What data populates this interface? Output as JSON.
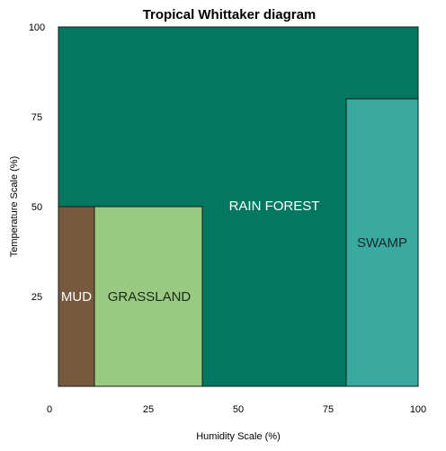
{
  "chart_data": {
    "type": "area",
    "title": "Tropical Whittaker diagram",
    "xlabel": "Humidity Scale (%)",
    "ylabel": "Temperature Scale (%)",
    "xlim": [
      0,
      100
    ],
    "ylim": [
      0,
      100
    ],
    "xticks": [
      "0",
      "25",
      "50",
      "75",
      "100"
    ],
    "yticks": [
      "25",
      "50",
      "75",
      "100"
    ],
    "grid": false,
    "legend": "none",
    "regions": [
      {
        "name": "RAIN FOREST",
        "color": "#047760",
        "label_color": "#ffffff",
        "polygon": [
          [
            0,
            100
          ],
          [
            100,
            100
          ],
          [
            100,
            80
          ],
          [
            80,
            80
          ],
          [
            80,
            0
          ],
          [
            40,
            0
          ],
          [
            40,
            50
          ],
          [
            0,
            50
          ]
        ]
      },
      {
        "name": "MUD",
        "color": "#765a40",
        "label_color": "#ffffff",
        "x": [
          0,
          10
        ],
        "y": [
          0,
          50
        ]
      },
      {
        "name": "GRASSLAND",
        "color": "#9aca82",
        "label_color": "#1a2a1a",
        "x": [
          10,
          40
        ],
        "y": [
          0,
          50
        ]
      },
      {
        "name": "SWAMP",
        "color": "#3aa99f",
        "label_color": "#1a2a2a",
        "x": [
          80,
          100
        ],
        "y": [
          0,
          80
        ]
      }
    ]
  }
}
